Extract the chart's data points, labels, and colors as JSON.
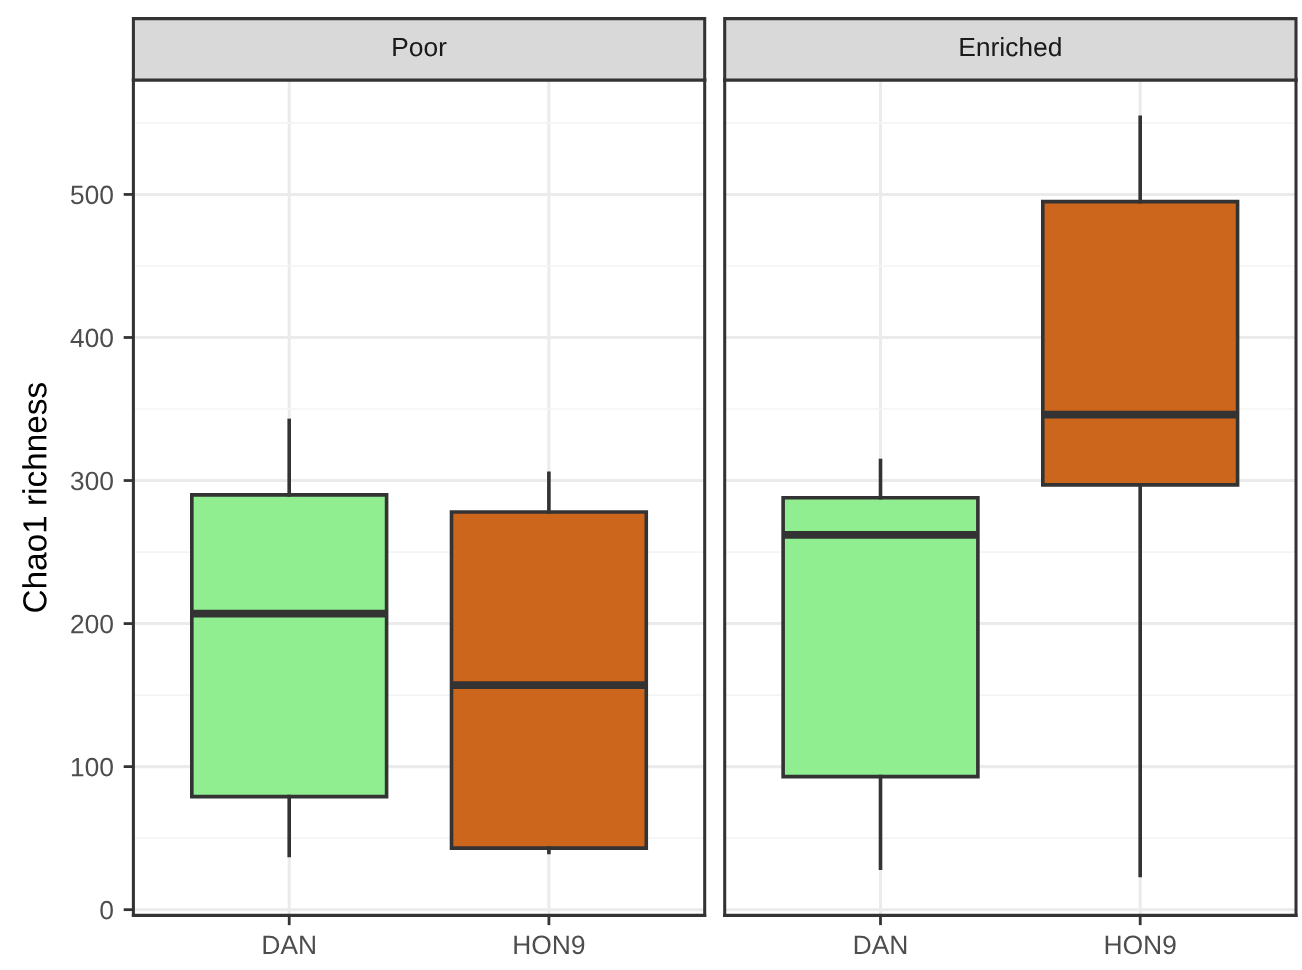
{
  "chart_data": [
    {
      "type": "box",
      "title": "Poor",
      "ylabel": "Chao1 richness",
      "categories": [
        "DAN",
        "HON9"
      ],
      "colors": [
        "#90ee90",
        "#cd661d"
      ],
      "boxes": [
        {
          "low": 38,
          "q1": 79,
          "median": 207,
          "q3": 290,
          "high": 342
        },
        {
          "low": 40,
          "q1": 43,
          "median": 157,
          "q3": 278,
          "high": 305
        }
      ],
      "ylim": [
        -4,
        580
      ],
      "yticks": [
        0,
        100,
        200,
        300,
        400,
        500
      ],
      "grid": true
    },
    {
      "type": "box",
      "title": "Enriched",
      "categories": [
        "DAN",
        "HON9"
      ],
      "colors": [
        "#90ee90",
        "#cd661d"
      ],
      "boxes": [
        {
          "low": 29,
          "q1": 93,
          "median": 262,
          "q3": 288,
          "high": 314
        },
        {
          "low": 24,
          "q1": 297,
          "median": 346,
          "q3": 495,
          "high": 554
        }
      ],
      "ylim": [
        -4,
        580
      ],
      "yticks": [
        0,
        100,
        200,
        300,
        400,
        500
      ],
      "tick_labels": "x",
      "grid": true
    }
  ]
}
